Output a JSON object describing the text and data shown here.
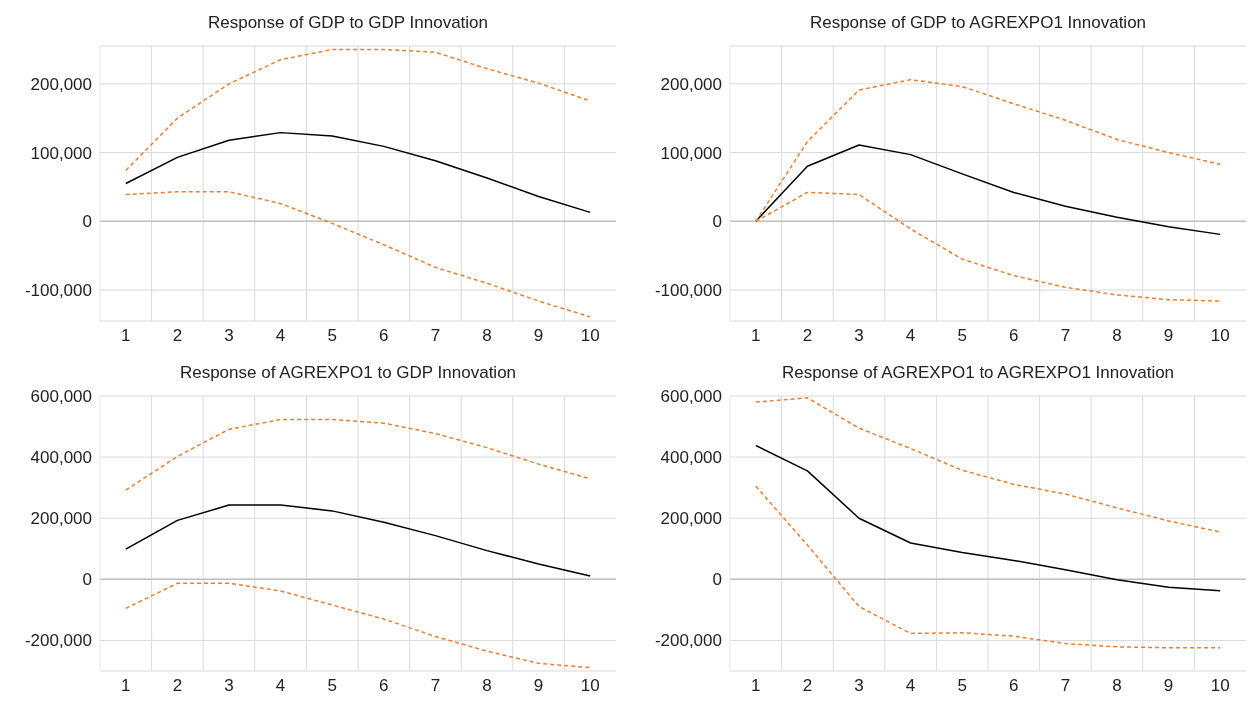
{
  "chart_data": [
    {
      "type": "line",
      "title": "Response of GDP to GDP Innovation",
      "categories": [
        "1",
        "2",
        "3",
        "4",
        "5",
        "6",
        "7",
        "8",
        "9",
        "10"
      ],
      "series": [
        {
          "color": "#000000",
          "line_style": "solid",
          "values": [
            55000,
            93000,
            118000,
            129000,
            124000,
            109000,
            88000,
            63000,
            36000,
            13000
          ]
        },
        {
          "color": "#ed7d31",
          "line_style": "dashed",
          "values": [
            74000,
            150000,
            200000,
            235000,
            250000,
            250000,
            246000,
            222000,
            201000,
            175000
          ]
        },
        {
          "color": "#ed7d31",
          "line_style": "dashed",
          "values": [
            39000,
            43000,
            43000,
            26000,
            -3000,
            -34000,
            -67000,
            -90000,
            -116000,
            -139000
          ]
        }
      ],
      "ylim": [
        -145000,
        255000
      ],
      "yticks": [
        {
          "value": -100000,
          "label": "-100,000"
        },
        {
          "value": 0,
          "label": "0"
        },
        {
          "value": 100000,
          "label": "100,000"
        },
        {
          "value": 200000,
          "label": "200,000"
        }
      ],
      "ref_lines": [
        {
          "axis": "y",
          "value": 0,
          "color": "#bfbfbf"
        }
      ],
      "grid": true,
      "marker": "none"
    },
    {
      "type": "line",
      "title": "Response of GDP to AGREXPO1 Innovation",
      "categories": [
        "1",
        "2",
        "3",
        "4",
        "5",
        "6",
        "7",
        "8",
        "9",
        "10"
      ],
      "series": [
        {
          "color": "#000000",
          "line_style": "solid",
          "values": [
            0,
            80000,
            111000,
            97000,
            69000,
            42000,
            22000,
            6000,
            -8000,
            -19000
          ]
        },
        {
          "color": "#ed7d31",
          "line_style": "dashed",
          "values": [
            0,
            116000,
            191000,
            206000,
            196000,
            171000,
            147000,
            119000,
            100000,
            83000
          ]
        },
        {
          "color": "#ed7d31",
          "line_style": "dashed",
          "values": [
            0,
            42000,
            39000,
            -11000,
            -55000,
            -79000,
            -96000,
            -107000,
            -114000,
            -116000
          ]
        }
      ],
      "ylim": [
        -145000,
        255000
      ],
      "yticks": [
        {
          "value": -100000,
          "label": "-100,000"
        },
        {
          "value": 0,
          "label": "0"
        },
        {
          "value": 100000,
          "label": "100,000"
        },
        {
          "value": 200000,
          "label": "200,000"
        }
      ],
      "ref_lines": [
        {
          "axis": "y",
          "value": 0,
          "color": "#bfbfbf"
        }
      ],
      "grid": true,
      "marker": "none"
    },
    {
      "type": "line",
      "title": "Response of AGREXPO1 to GDP Innovation",
      "categories": [
        "1",
        "2",
        "3",
        "4",
        "5",
        "6",
        "7",
        "8",
        "9",
        "10"
      ],
      "series": [
        {
          "color": "#000000",
          "line_style": "solid",
          "values": [
            99000,
            193000,
            243000,
            243000,
            224000,
            187000,
            143000,
            94000,
            50000,
            11000
          ]
        },
        {
          "color": "#ed7d31",
          "line_style": "dashed",
          "values": [
            292000,
            402000,
            491000,
            523000,
            523000,
            511000,
            477000,
            431000,
            377000,
            329000
          ]
        },
        {
          "color": "#ed7d31",
          "line_style": "dashed",
          "values": [
            -95000,
            -13000,
            -13000,
            -38000,
            -84000,
            -130000,
            -187000,
            -235000,
            -275000,
            -289000
          ]
        }
      ],
      "ylim": [
        -300000,
        600000
      ],
      "yticks": [
        {
          "value": -200000,
          "label": "-200,000"
        },
        {
          "value": 0,
          "label": "0"
        },
        {
          "value": 200000,
          "label": "200,000"
        },
        {
          "value": 400000,
          "label": "400,000"
        },
        {
          "value": 600000,
          "label": "600,000"
        }
      ],
      "ref_lines": [
        {
          "axis": "y",
          "value": 0,
          "color": "#bfbfbf"
        }
      ],
      "grid": true,
      "marker": "none"
    },
    {
      "type": "line",
      "title": "Response of AGREXPO1 to AGREXPO1 Innovation",
      "categories": [
        "1",
        "2",
        "3",
        "4",
        "5",
        "6",
        "7",
        "8",
        "9",
        "10"
      ],
      "series": [
        {
          "color": "#000000",
          "line_style": "solid",
          "values": [
            438000,
            355000,
            200000,
            119000,
            88000,
            62000,
            31000,
            -1000,
            -26000,
            -37000
          ]
        },
        {
          "color": "#ed7d31",
          "line_style": "dashed",
          "values": [
            580000,
            594000,
            495000,
            428000,
            357000,
            311000,
            279000,
            234000,
            191000,
            155000
          ]
        },
        {
          "color": "#ed7d31",
          "line_style": "dashed",
          "values": [
            305000,
            112000,
            -89000,
            -177000,
            -175000,
            -186000,
            -210000,
            -221000,
            -224000,
            -224000
          ]
        }
      ],
      "ylim": [
        -300000,
        600000
      ],
      "yticks": [
        {
          "value": -200000,
          "label": "-200,000"
        },
        {
          "value": 0,
          "label": "0"
        },
        {
          "value": 200000,
          "label": "200,000"
        },
        {
          "value": 400000,
          "label": "400,000"
        },
        {
          "value": 600000,
          "label": "600,000"
        }
      ],
      "ref_lines": [
        {
          "axis": "y",
          "value": 0,
          "color": "#bfbfbf"
        }
      ],
      "grid": true,
      "marker": "none"
    }
  ]
}
